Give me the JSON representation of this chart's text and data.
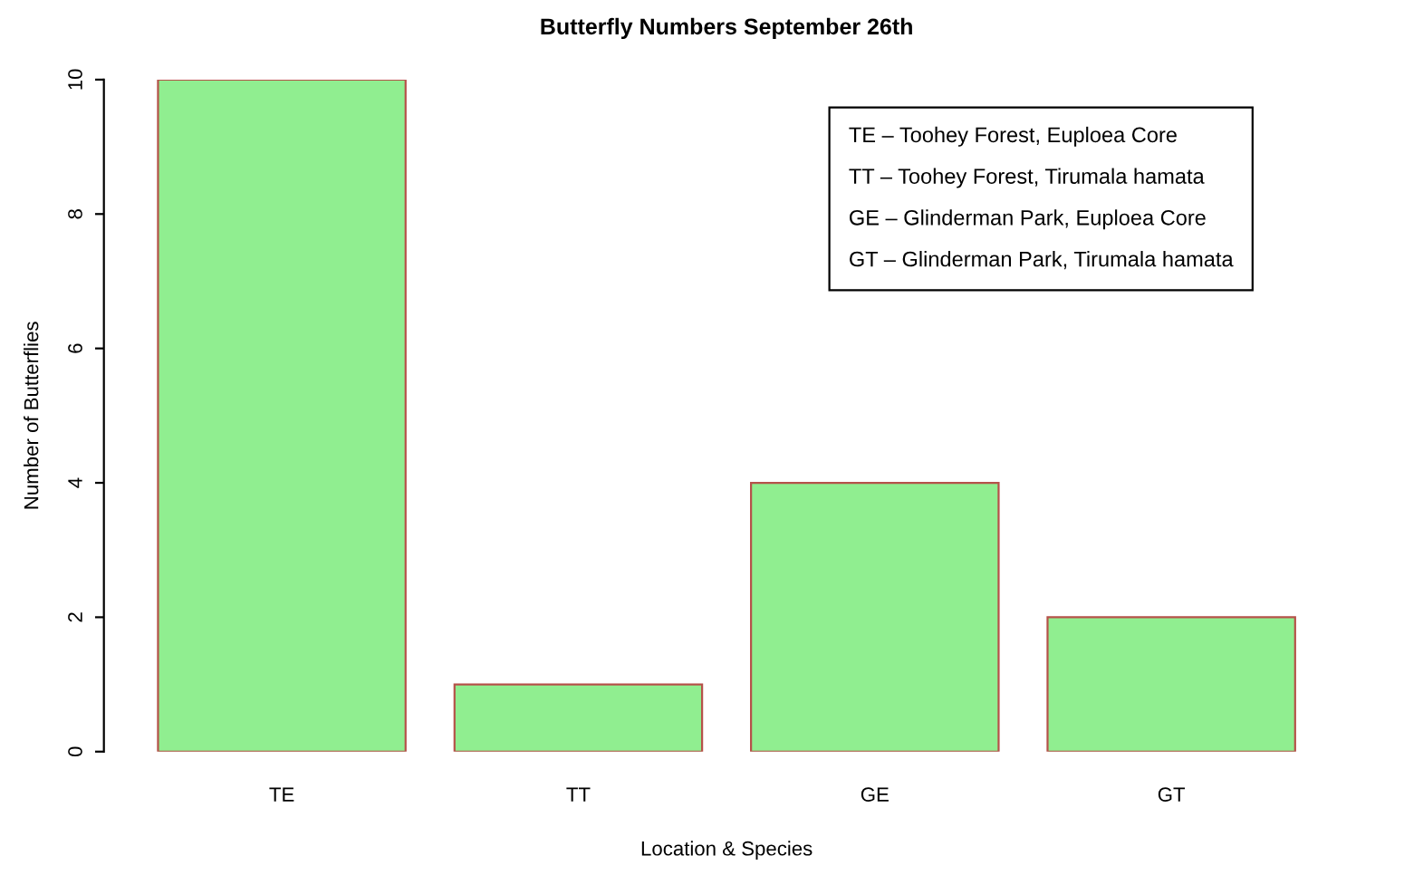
{
  "chart_data": {
    "type": "bar",
    "title": "Butterfly Numbers September 26th",
    "xlabel": "Location & Species",
    "ylabel": "Number of Butterflies",
    "categories": [
      "TE",
      "TT",
      "GE",
      "GT"
    ],
    "values": [
      10,
      1,
      4,
      2
    ],
    "color": "#90ee90",
    "ylim": [
      0,
      10
    ],
    "yticks": [
      0,
      2,
      4,
      6,
      8,
      10
    ],
    "grid": false,
    "annotations": [
      "TE – Toohey Forest, Euploea Core",
      "TT – Toohey Forest, Tirumala hamata",
      "GE – Glinderman Park, Euploea Core",
      "GT – Glinderman Park, Tirumala hamata"
    ]
  }
}
